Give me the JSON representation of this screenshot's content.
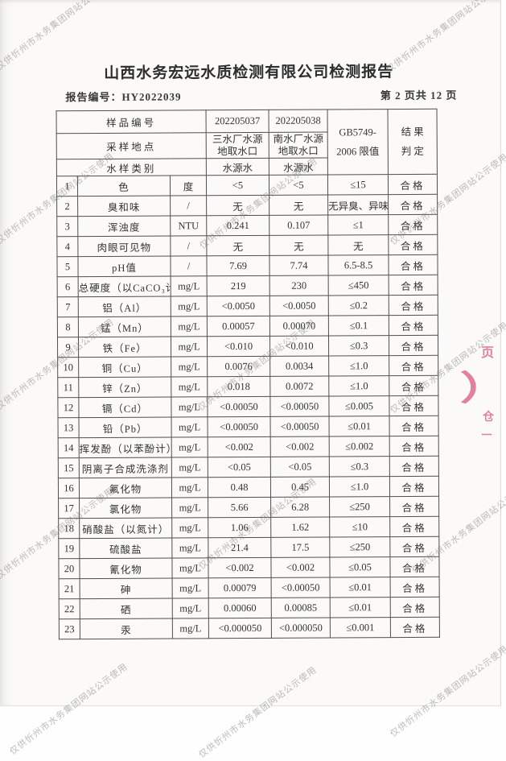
{
  "page": {
    "title": "山西水务宏远水质检测有限公司检测报告",
    "report_no": "报告编号：HY2022039",
    "page_indicator": "第 2 页共 12 页",
    "watermark_text": "仅供忻州市水务集团网站公示使用"
  },
  "table": {
    "header": {
      "sample_no_label": "样品编号",
      "sample_no_1": "202205037",
      "sample_no_2": "202205038",
      "location_label": "采样地点",
      "location_1_line1": "三水厂水源",
      "location_1_line2": "地取水口",
      "location_2_line1": "南水厂水源",
      "location_2_line2": "地取水口",
      "category_label": "水样类别",
      "category_1": "水源水",
      "category_2": "水源水",
      "limit_line1": "GB5749-",
      "limit_line2": "2006 限值",
      "result_line1": "结 果",
      "result_line2": "判 定"
    },
    "rows": [
      {
        "no": "1",
        "item": "色",
        "unit": "度",
        "v1": "<5",
        "v2": "<5",
        "limit": "≤15",
        "result": "合格"
      },
      {
        "no": "2",
        "item": "臭和味",
        "unit": "/",
        "v1": "无",
        "v2": "无",
        "limit": "无异臭、异味",
        "result": "合格"
      },
      {
        "no": "3",
        "item": "浑浊度",
        "unit": "NTU",
        "v1": "0.241",
        "v2": "0.107",
        "limit": "≤1",
        "result": "合格"
      },
      {
        "no": "4",
        "item": "肉眼可见物",
        "unit": "/",
        "v1": "无",
        "v2": "无",
        "limit": "无",
        "result": "合格"
      },
      {
        "no": "5",
        "item": "pH值",
        "unit": "/",
        "v1": "7.69",
        "v2": "7.74",
        "limit": "6.5-8.5",
        "result": "合格"
      },
      {
        "no": "6",
        "item": "总硬度（以CaCO₃计）",
        "unit": "mg/L",
        "v1": "219",
        "v2": "230",
        "limit": "≤450",
        "result": "合格"
      },
      {
        "no": "7",
        "item": "铝（Al）",
        "unit": "mg/L",
        "v1": "<0.0050",
        "v2": "<0.0050",
        "limit": "≤0.2",
        "result": "合格"
      },
      {
        "no": "8",
        "item": "锰（Mn）",
        "unit": "mg/L",
        "v1": "0.00057",
        "v2": "0.00070",
        "limit": "≤0.1",
        "result": "合格"
      },
      {
        "no": "9",
        "item": "铁（Fe）",
        "unit": "mg/L",
        "v1": "<0.010",
        "v2": "<0.010",
        "limit": "≤0.3",
        "result": "合格"
      },
      {
        "no": "10",
        "item": "铜（Cu）",
        "unit": "mg/L",
        "v1": "0.0076",
        "v2": "0.0034",
        "limit": "≤1.0",
        "result": "合格"
      },
      {
        "no": "11",
        "item": "锌（Zn）",
        "unit": "mg/L",
        "v1": "0.018",
        "v2": "0.0072",
        "limit": "≤1.0",
        "result": "合格"
      },
      {
        "no": "12",
        "item": "镉（Cd）",
        "unit": "mg/L",
        "v1": "<0.00050",
        "v2": "<0.00050",
        "limit": "≤0.005",
        "result": "合格"
      },
      {
        "no": "13",
        "item": "铅（Pb）",
        "unit": "mg/L",
        "v1": "<0.00050",
        "v2": "<0.00050",
        "limit": "≤0.01",
        "result": "合格"
      },
      {
        "no": "14",
        "item": "挥发酚（以苯酚计）",
        "unit": "mg/L",
        "v1": "<0.002",
        "v2": "<0.002",
        "limit": "≤0.002",
        "result": "合格"
      },
      {
        "no": "15",
        "item": "阴离子合成洗涤剂",
        "unit": "mg/L",
        "v1": "<0.05",
        "v2": "<0.05",
        "limit": "≤0.3",
        "result": "合格"
      },
      {
        "no": "16",
        "item": "氟化物",
        "unit": "mg/L",
        "v1": "0.48",
        "v2": "0.45",
        "limit": "≤1.0",
        "result": "合格"
      },
      {
        "no": "17",
        "item": "氯化物",
        "unit": "mg/L",
        "v1": "5.66",
        "v2": "6.28",
        "limit": "≤250",
        "result": "合格"
      },
      {
        "no": "18",
        "item": "硝酸盐（以氮计）",
        "unit": "mg/L",
        "v1": "1.06",
        "v2": "1.62",
        "limit": "≤10",
        "result": "合格"
      },
      {
        "no": "19",
        "item": "硫酸盐",
        "unit": "mg/L",
        "v1": "21.4",
        "v2": "17.5",
        "limit": "≤250",
        "result": "合格"
      },
      {
        "no": "20",
        "item": "氰化物",
        "unit": "mg/L",
        "v1": "<0.002",
        "v2": "<0.002",
        "limit": "≤0.05",
        "result": "合格"
      },
      {
        "no": "21",
        "item": "砷",
        "unit": "mg/L",
        "v1": "0.00079",
        "v2": "<0.00050",
        "limit": "≤0.01",
        "result": "合格"
      },
      {
        "no": "22",
        "item": "硒",
        "unit": "mg/L",
        "v1": "0.00060",
        "v2": "0.00085",
        "limit": "≤0.01",
        "result": "合格"
      },
      {
        "no": "23",
        "item": "汞",
        "unit": "mg/L",
        "v1": "<0.000050",
        "v2": "<0.000050",
        "limit": "≤0.001",
        "result": "合格"
      }
    ]
  },
  "stamp": {
    "color": "#dd6287",
    "fragments": [
      "页",
      "）",
      "仓",
      "一"
    ]
  }
}
